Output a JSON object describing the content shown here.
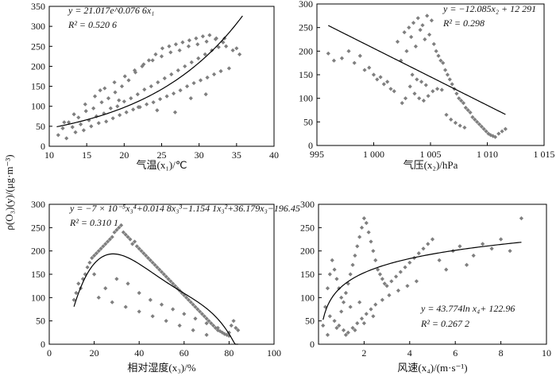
{
  "figure": {
    "shared_ylabel": "ρ(O₃)(y)/(μg·m⁻³)"
  },
  "chart_data": [
    {
      "id": "temp",
      "type": "scatter",
      "xlabel": "气温(x₁)/℃",
      "xlim": [
        10,
        40
      ],
      "ylim": [
        0,
        350
      ],
      "xticks": [
        10,
        15,
        20,
        25,
        30,
        35,
        40
      ],
      "xtick_labels": [
        "10",
        "15",
        "20",
        "25",
        "30",
        "35",
        "40"
      ],
      "yticks": [
        0,
        50,
        100,
        150,
        200,
        250,
        300,
        350
      ],
      "ytick_labels": [
        "0",
        "50",
        "100",
        "150",
        "200",
        "250",
        "300",
        "350"
      ],
      "equation": "y = 21.017e^0.076 6x₁",
      "r2": "R² = 0.520 6",
      "fit": {
        "kind": "exp",
        "a": 21.017,
        "b": 0.0766,
        "xrange": [
          11,
          35.8
        ]
      },
      "x": [
        11.2,
        11.8,
        12.3,
        12.6,
        13.1,
        13.5,
        13.9,
        14.2,
        14.6,
        14.9,
        15.3,
        15.6,
        15.9,
        16.3,
        16.6,
        17.0,
        17.3,
        17.6,
        17.9,
        18.2,
        18.5,
        18.8,
        19.1,
        19.4,
        19.7,
        20.0,
        20.3,
        20.6,
        20.9,
        21.2,
        21.5,
        21.8,
        22.1,
        22.4,
        22.7,
        23.0,
        23.3,
        23.6,
        23.9,
        24.2,
        24.5,
        24.8,
        25.1,
        25.4,
        25.7,
        26.0,
        26.3,
        26.6,
        26.9,
        27.2,
        27.5,
        27.8,
        28.1,
        28.4,
        28.7,
        29.0,
        29.3,
        29.6,
        29.9,
        30.2,
        30.5,
        30.8,
        31.1,
        31.4,
        31.7,
        32.0,
        32.3,
        32.6,
        32.9,
        33.2,
        33.6,
        34.0,
        34.5,
        35.0,
        35.4,
        12.0,
        13.3,
        14.8,
        16.1,
        17.4,
        18.7,
        20.1,
        21.4,
        22.6,
        23.8,
        25.0,
        26.2,
        27.4,
        28.6,
        29.8,
        31.0,
        32.2,
        33.4,
        19.3,
        21.9,
        24.4,
        26.8,
        28.9,
        30.9,
        16.8
      ],
      "y": [
        28,
        45,
        20,
        60,
        48,
        35,
        72,
        55,
        40,
        88,
        65,
        50,
        95,
        75,
        58,
        110,
        82,
        62,
        120,
        95,
        70,
        135,
        100,
        78,
        150,
        112,
        85,
        165,
        120,
        92,
        185,
        130,
        98,
        200,
        142,
        105,
        215,
        150,
        110,
        230,
        160,
        118,
        245,
        170,
        125,
        250,
        180,
        132,
        255,
        190,
        140,
        260,
        200,
        150,
        265,
        210,
        158,
        270,
        220,
        165,
        275,
        230,
        172,
        278,
        240,
        180,
        270,
        248,
        188,
        260,
        250,
        195,
        240,
        245,
        230,
        60,
        80,
        105,
        125,
        145,
        160,
        175,
        190,
        205,
        215,
        225,
        235,
        240,
        250,
        255,
        262,
        268,
        270,
        115,
        98,
        90,
        85,
        120,
        130,
        140
      ]
    },
    {
      "id": "pressure",
      "type": "scatter",
      "xlabel": "气压(x₂)/hPa",
      "xlim": [
        995,
        1015
      ],
      "ylim": [
        0,
        300
      ],
      "xticks": [
        995,
        1000,
        1005,
        1010,
        1015
      ],
      "xtick_labels": [
        "995",
        "1 000",
        "1 005",
        "1 010",
        "1 015"
      ],
      "yticks": [
        0,
        50,
        100,
        150,
        200,
        250,
        300
      ],
      "ytick_labels": [
        "0",
        "50",
        "100",
        "150",
        "200",
        "250",
        "300"
      ],
      "equation": "y = −12.085x₂ + 12 291",
      "r2": "R² = 0.298",
      "fit": {
        "kind": "line",
        "m": -12.085,
        "c": 12291,
        "xrange": [
          996,
          1011.6
        ]
      },
      "x": [
        996.0,
        996.5,
        997.2,
        997.8,
        998.3,
        998.8,
        999.2,
        999.6,
        1000.0,
        1000.3,
        1000.6,
        1000.9,
        1001.2,
        1001.5,
        1001.8,
        1002.1,
        1002.4,
        1002.7,
        1002.9,
        1003.1,
        1003.3,
        1003.5,
        1003.7,
        1003.9,
        1004.1,
        1004.3,
        1004.5,
        1004.7,
        1004.9,
        1005.1,
        1005.3,
        1005.5,
        1005.7,
        1005.9,
        1006.1,
        1006.3,
        1006.5,
        1006.7,
        1006.9,
        1007.1,
        1007.3,
        1007.5,
        1007.7,
        1007.9,
        1008.1,
        1008.3,
        1008.5,
        1008.7,
        1008.9,
        1009.1,
        1009.3,
        1009.5,
        1009.7,
        1009.9,
        1010.1,
        1010.3,
        1010.5,
        1010.7,
        1011.0,
        1011.3,
        1011.6,
        1003.2,
        1003.6,
        1004.0,
        1004.4,
        1004.8,
        1005.2,
        1005.6,
        1006.0,
        1003.4,
        1003.8,
        1004.2,
        1004.6,
        1002.8,
        1002.5,
        1006.4,
        1006.8,
        1007.2,
        1007.6,
        1008.0
      ],
      "y": [
        195,
        180,
        185,
        200,
        175,
        190,
        160,
        165,
        150,
        140,
        145,
        130,
        135,
        120,
        115,
        220,
        180,
        240,
        200,
        250,
        230,
        260,
        210,
        270,
        245,
        255,
        225,
        275,
        235,
        265,
        215,
        200,
        190,
        180,
        175,
        160,
        150,
        140,
        130,
        120,
        110,
        100,
        95,
        90,
        80,
        75,
        70,
        60,
        55,
        50,
        45,
        40,
        35,
        30,
        25,
        22,
        20,
        18,
        25,
        30,
        35,
        125,
        110,
        100,
        95,
        105,
        115,
        120,
        118,
        150,
        140,
        135,
        128,
        100,
        90,
        65,
        55,
        48,
        42,
        38
      ]
    },
    {
      "id": "humidity",
      "type": "scatter",
      "xlabel": "相对湿度(x₃)/%",
      "xlim": [
        0,
        100
      ],
      "ylim": [
        0,
        300
      ],
      "xticks": [
        0,
        20,
        40,
        60,
        80,
        100
      ],
      "xtick_labels": [
        "0",
        "20",
        "40",
        "60",
        "80",
        "100"
      ],
      "yticks": [
        0,
        50,
        100,
        150,
        200,
        250,
        300
      ],
      "ytick_labels": [
        "0",
        "50",
        "100",
        "150",
        "200",
        "250",
        "300"
      ],
      "equation": "y = −7 × 10⁻⁵x₃⁴+0.014 8x₃³−1.154 1x₃²+36.179x₃−196.45",
      "r2": "R² = 0.310 1",
      "fit": {
        "kind": "poly4",
        "coef": [
          -7e-05,
          0.0148,
          -1.1541,
          36.179,
          -196.45
        ],
        "xrange": [
          11,
          84
        ]
      },
      "x": [
        11,
        12,
        13,
        14,
        15,
        16,
        17,
        18,
        19,
        20,
        21,
        22,
        23,
        24,
        25,
        26,
        27,
        28,
        29,
        30,
        31,
        32,
        33,
        34,
        35,
        36,
        37,
        38,
        39,
        40,
        41,
        42,
        43,
        44,
        45,
        46,
        47,
        48,
        49,
        50,
        51,
        52,
        53,
        54,
        55,
        56,
        57,
        58,
        59,
        60,
        61,
        62,
        63,
        64,
        65,
        66,
        67,
        68,
        69,
        70,
        71,
        72,
        73,
        74,
        75,
        76,
        77,
        78,
        79,
        80,
        81,
        82,
        83,
        84,
        20,
        25,
        30,
        35,
        40,
        45,
        50,
        55,
        60,
        65,
        70,
        75,
        80,
        22,
        28,
        34,
        40,
        46,
        52,
        58,
        64,
        70
      ],
      "y": [
        95,
        110,
        130,
        120,
        140,
        150,
        165,
        175,
        185,
        190,
        195,
        200,
        205,
        210,
        215,
        220,
        225,
        230,
        240,
        245,
        250,
        255,
        240,
        235,
        230,
        225,
        215,
        220,
        210,
        205,
        200,
        195,
        190,
        185,
        180,
        175,
        170,
        165,
        160,
        155,
        150,
        145,
        140,
        135,
        130,
        125,
        120,
        115,
        110,
        105,
        100,
        95,
        90,
        85,
        80,
        75,
        70,
        65,
        60,
        55,
        50,
        45,
        40,
        35,
        30,
        28,
        25,
        22,
        20,
        18,
        40,
        50,
        35,
        30,
        150,
        120,
        140,
        130,
        110,
        95,
        85,
        75,
        65,
        55,
        45,
        35,
        25,
        100,
        90,
        80,
        70,
        60,
        50,
        40,
        30,
        20
      ]
    },
    {
      "id": "wind",
      "type": "scatter",
      "xlabel": "风速(x₄)/(m·s⁻¹)",
      "xlim": [
        0,
        10
      ],
      "ylim": [
        0,
        300
      ],
      "xticks": [
        0,
        2,
        4,
        6,
        8,
        10
      ],
      "xtick_labels": [
        "",
        "2",
        "4",
        "6",
        "8",
        "10"
      ],
      "yticks": [
        0,
        50,
        100,
        150,
        200,
        250,
        300
      ],
      "ytick_labels": [
        "0",
        "50",
        "100",
        "150",
        "200",
        "250",
        "300"
      ],
      "equation": "y = 43.774ln x₄+ 122.96",
      "r2": "R² = 0.267 2",
      "fit": {
        "kind": "log",
        "a": 43.774,
        "b": 122.96,
        "xrange": [
          0.2,
          8.9
        ]
      },
      "x": [
        0.2,
        0.3,
        0.4,
        0.5,
        0.6,
        0.7,
        0.8,
        0.9,
        1.0,
        1.1,
        1.2,
        1.3,
        1.4,
        1.5,
        1.6,
        1.7,
        1.8,
        1.9,
        2.0,
        2.1,
        2.2,
        2.3,
        2.4,
        2.5,
        2.6,
        2.7,
        2.8,
        2.9,
        3.0,
        3.2,
        3.4,
        3.6,
        3.8,
        4.0,
        4.2,
        4.4,
        4.6,
        4.8,
        5.0,
        5.3,
        5.6,
        5.9,
        6.2,
        6.5,
        6.8,
        7.2,
        7.6,
        8.0,
        8.4,
        8.9,
        0.5,
        0.7,
        0.9,
        1.1,
        1.3,
        1.5,
        1.7,
        1.9,
        2.1,
        2.3,
        2.5,
        2.8,
        3.1,
        3.5,
        3.9,
        4.3,
        0.4,
        0.8,
        1.2,
        1.6,
        2.0,
        2.4,
        1.0,
        1.4,
        1.8
      ],
      "y": [
        40,
        80,
        120,
        150,
        180,
        160,
        140,
        120,
        100,
        90,
        110,
        130,
        150,
        170,
        190,
        210,
        230,
        250,
        270,
        260,
        240,
        220,
        200,
        180,
        160,
        150,
        140,
        130,
        125,
        135,
        145,
        155,
        165,
        175,
        185,
        195,
        205,
        215,
        225,
        180,
        160,
        200,
        210,
        170,
        190,
        215,
        205,
        225,
        200,
        270,
        60,
        50,
        40,
        30,
        25,
        35,
        45,
        55,
        65,
        75,
        85,
        95,
        105,
        115,
        125,
        135,
        20,
        35,
        20,
        30,
        45,
        60,
        70,
        80,
        90
      ]
    }
  ]
}
